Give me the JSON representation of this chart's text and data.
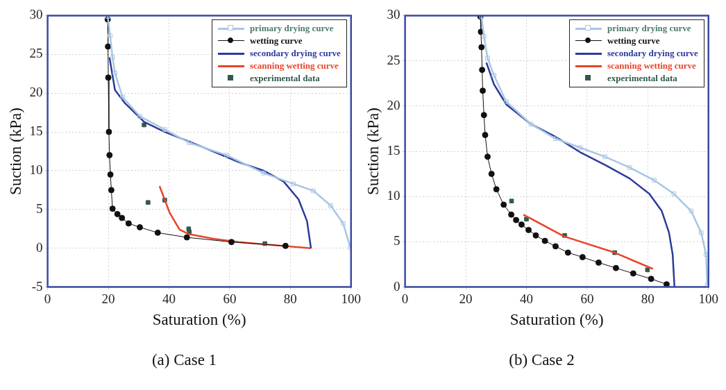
{
  "chart_data": [
    {
      "type": "line",
      "title": "(a) Case 1",
      "xlabel": "Saturation (%)",
      "ylabel": "Suction (kPa)",
      "xlim": [
        0,
        100
      ],
      "ylim": [
        -5,
        30
      ],
      "xticks": [
        0,
        20,
        40,
        60,
        80,
        100
      ],
      "yticks": [
        -5,
        0,
        5,
        10,
        15,
        20,
        25,
        30
      ],
      "grid": true,
      "legend": "top right",
      "series": [
        {
          "name": "primary drying curve",
          "color": "#a9c6e4",
          "marker": "square",
          "x": [
            19.8,
            20.6,
            21.4,
            22.2,
            24.7,
            30.4,
            38.6,
            46.7,
            59,
            71.2,
            81,
            87.6,
            93.3,
            97.4,
            99.8
          ],
          "values": [
            29.9,
            27.4,
            24.6,
            22.6,
            19.5,
            17,
            15.3,
            13.6,
            12,
            9.7,
            8.3,
            7.4,
            5.5,
            3.2,
            0.1
          ]
        },
        {
          "name": "wetting curve",
          "color": "#111111",
          "marker": "circle",
          "x": [
            19.8,
            19.9,
            20,
            20.2,
            20.4,
            20.7,
            21,
            21.4,
            23,
            24.5,
            26.7,
            30.4,
            36.3,
            45.9,
            60.6,
            78.4
          ],
          "values": [
            29.5,
            26,
            22,
            15,
            12,
            9.5,
            7.5,
            5.1,
            4.4,
            3.9,
            3.2,
            2.7,
            2,
            1.4,
            0.8,
            0.3
          ]
        },
        {
          "name": "secondary drying curve",
          "color": "#2b3a9a",
          "marker": "none",
          "x": [
            20.4,
            21,
            22.2,
            25.5,
            31.8,
            38.6,
            50.8,
            63,
            71.2,
            77.8,
            82.7,
            85.5,
            86.8
          ],
          "values": [
            24.6,
            23.2,
            20.4,
            18.7,
            16.3,
            15,
            13.1,
            11.1,
            10,
            8.6,
            6.3,
            3.5,
            0
          ]
        },
        {
          "name": "scanning wetting curve",
          "color": "#e8442a",
          "marker": "none",
          "x": [
            36.9,
            40.2,
            43.5,
            46.7,
            54.9,
            63,
            71.6,
            86.8
          ],
          "values": [
            8,
            4.6,
            2.4,
            1.8,
            1.2,
            0.8,
            0.5,
            0
          ]
        },
        {
          "name": "experimental data",
          "type": "scatter",
          "color": "#2f5a4f",
          "marker": "square",
          "x": [
            31.8,
            33.1,
            38.6,
            46.5,
            46.7,
            71.6
          ],
          "values": [
            15.9,
            5.9,
            6.2,
            2.5,
            2.1,
            0.6
          ]
        }
      ]
    },
    {
      "type": "line",
      "title": "(b) Case 2",
      "xlabel": "Saturation (%)",
      "ylabel": "Suction (kPa)",
      "xlim": [
        0,
        100
      ],
      "ylim": [
        0,
        30
      ],
      "xticks": [
        0,
        20,
        40,
        60,
        80,
        100
      ],
      "yticks": [
        0,
        5,
        10,
        15,
        20,
        25,
        30
      ],
      "grid": true,
      "legend": "top right",
      "series": [
        {
          "name": "primary drying curve",
          "color": "#a9c6e4",
          "marker": "square",
          "x": [
            25.2,
            26,
            27.2,
            29.3,
            33.3,
            41.5,
            49.6,
            57.7,
            65.9,
            74,
            82.1,
            88.6,
            94.3,
            97.6,
            99.2,
            99.6
          ],
          "values": [
            29.9,
            27.7,
            25.3,
            23.4,
            20.5,
            18,
            16.4,
            15.4,
            14.4,
            13.2,
            11.8,
            10.3,
            8.4,
            6,
            3.6,
            0.2
          ]
        },
        {
          "name": "wetting curve",
          "color": "#111111",
          "marker": "circle",
          "x": [
            24.8,
            25,
            25.2,
            25.4,
            25.6,
            26,
            26.4,
            27.2,
            28.5,
            30.1,
            32.5,
            35,
            36.6,
            38.4,
            40.7,
            43.1,
            46.1,
            49.6,
            53.7,
            58.5,
            63.8,
            69.5,
            75.2,
            81.1,
            86.2
          ],
          "values": [
            29.9,
            28.2,
            26.5,
            24,
            21.7,
            19,
            16.8,
            14.4,
            12.5,
            10.8,
            9.1,
            8,
            7.4,
            6.9,
            6.3,
            5.7,
            5.1,
            4.5,
            3.8,
            3.3,
            2.7,
            2.1,
            1.5,
            0.9,
            0.3
          ]
        },
        {
          "name": "secondary drying curve",
          "color": "#2b3a9a",
          "marker": "none",
          "x": [
            26.8,
            29.3,
            33.3,
            41.5,
            49.6,
            57.7,
            65.9,
            74,
            80.5,
            84.6,
            87,
            88.2,
            88.8
          ],
          "values": [
            24.8,
            22.4,
            20.2,
            18,
            16.6,
            14.9,
            13.5,
            12,
            10.3,
            8.4,
            6,
            3.6,
            0
          ]
        },
        {
          "name": "scanning wetting curve",
          "color": "#e8442a",
          "marker": "none",
          "x": [
            39,
            52.4,
            69.1,
            81.7
          ],
          "values": [
            8,
            5.6,
            3.8,
            2
          ]
        },
        {
          "name": "experimental data",
          "type": "scatter",
          "color": "#2f5a4f",
          "marker": "square",
          "x": [
            35.1,
            40,
            52.6,
            69.1,
            79.9
          ],
          "values": [
            9.5,
            7.5,
            5.7,
            3.8,
            1.9
          ]
        }
      ]
    }
  ]
}
